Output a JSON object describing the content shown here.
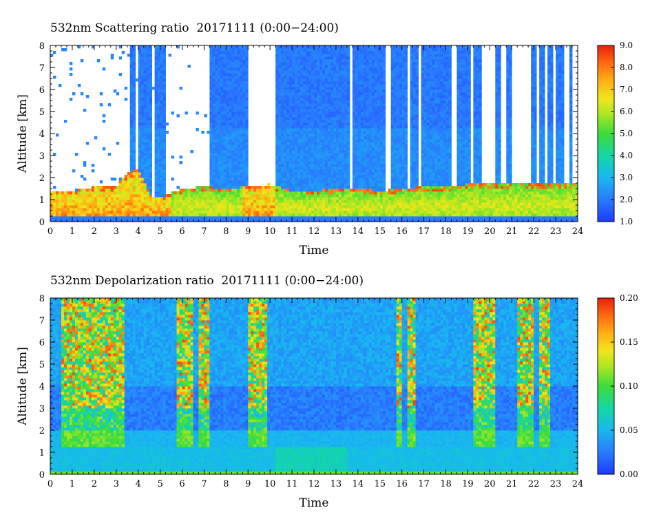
{
  "chart_data": [
    {
      "type": "heatmap",
      "title": "532nm Scattering ratio  20171111 (0:00−24:00)",
      "xlabel": "Time",
      "ylabel": "Altitude [km]",
      "xlim": [
        0,
        24
      ],
      "ylim": [
        0,
        8
      ],
      "x_ticks": [
        "0",
        "1",
        "2",
        "3",
        "4",
        "5",
        "6",
        "7",
        "8",
        "9",
        "10",
        "11",
        "12",
        "13",
        "14",
        "15",
        "16",
        "17",
        "18",
        "19",
        "20",
        "21",
        "22",
        "23",
        "24"
      ],
      "y_ticks": [
        "0",
        "1",
        "2",
        "3",
        "4",
        "5",
        "6",
        "7",
        "8"
      ],
      "colorbar": {
        "range": [
          1.0,
          9.0
        ],
        "tick_labels": [
          "1.0",
          "2.0",
          "3.0",
          "4.0",
          "5.0",
          "6.0",
          "7.0",
          "8.0",
          "9.0"
        ]
      },
      "missing_data_color": "#ffffff",
      "description_layers": {
        "lowest_layer_top_km": 0.3,
        "boundary_layer_top_km": [
          [
            0,
            1.4
          ],
          [
            1,
            1.4
          ],
          [
            2,
            1.6
          ],
          [
            3,
            1.6
          ],
          [
            3.5,
            2.2
          ],
          [
            4,
            2.4
          ],
          [
            4.6,
            1.2
          ],
          [
            5,
            1.1
          ],
          [
            6,
            1.5
          ],
          [
            7,
            1.6
          ],
          [
            8,
            1.5
          ],
          [
            9,
            1.6
          ],
          [
            10,
            1.7
          ],
          [
            11,
            1.4
          ],
          [
            12,
            1.4
          ],
          [
            13,
            1.5
          ],
          [
            14,
            1.5
          ],
          [
            15,
            1.4
          ],
          [
            16,
            1.5
          ],
          [
            17,
            1.6
          ],
          [
            18,
            1.6
          ],
          [
            19,
            1.7
          ],
          [
            20,
            1.7
          ],
          [
            21,
            1.8
          ],
          [
            22,
            1.7
          ],
          [
            23,
            1.7
          ],
          [
            24,
            1.7
          ]
        ],
        "data_columns_hours": [
          [
            0.2,
            0.3
          ],
          [
            3.6,
            3.9
          ],
          [
            4.0,
            4.6
          ],
          [
            4.8,
            5.3
          ],
          [
            7.3,
            9.0
          ],
          [
            10.3,
            13.6
          ],
          [
            13.8,
            15.3
          ],
          [
            15.5,
            15.7
          ],
          [
            15.8,
            16.2
          ],
          [
            16.4,
            16.7
          ],
          [
            16.9,
            18.3
          ],
          [
            18.5,
            19.1
          ],
          [
            19.2,
            19.6
          ],
          [
            20.3,
            20.5
          ],
          [
            20.7,
            21.0
          ],
          [
            21.9,
            22.1
          ],
          [
            22.3,
            22.5
          ],
          [
            22.6,
            22.9
          ],
          [
            23.0,
            23.4
          ],
          [
            23.6,
            23.8
          ]
        ]
      }
    },
    {
      "type": "heatmap",
      "title": "532nm Depolarization ratio  20171111 (0:00−24:00)",
      "xlabel": "Time",
      "ylabel": "Altitude [km]",
      "xlim": [
        0,
        24
      ],
      "ylim": [
        0,
        8
      ],
      "x_ticks": [
        "0",
        "1",
        "2",
        "3",
        "4",
        "5",
        "6",
        "7",
        "8",
        "9",
        "10",
        "11",
        "12",
        "13",
        "14",
        "15",
        "16",
        "17",
        "18",
        "19",
        "20",
        "21",
        "22",
        "23",
        "24"
      ],
      "y_ticks": [
        "0",
        "1",
        "2",
        "3",
        "4",
        "5",
        "6",
        "7",
        "8"
      ],
      "colorbar": {
        "range": [
          0.0,
          0.2
        ],
        "tick_labels": [
          "0.00",
          "0.05",
          "0.10",
          "0.15",
          "0.20"
        ]
      },
      "description_layers": {
        "noisy_high_depol_columns_hours": [
          [
            0.5,
            3.4
          ],
          [
            5.8,
            6.5
          ],
          [
            6.8,
            7.2
          ],
          [
            9.0,
            9.9
          ],
          [
            15.8,
            16.0
          ],
          [
            16.2,
            16.6
          ],
          [
            19.3,
            20.3
          ],
          [
            21.2,
            22.0
          ],
          [
            22.2,
            22.8
          ]
        ],
        "low_layer_enhancement_km": [
          1.3,
          2.0
        ]
      }
    }
  ]
}
